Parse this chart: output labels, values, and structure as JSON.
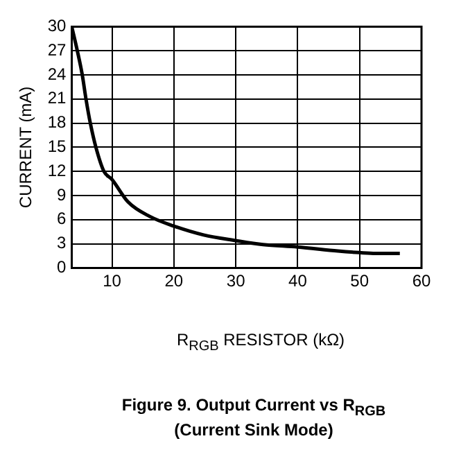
{
  "chart_data": {
    "type": "line",
    "title": "Figure 9. Output Current vs R$_{RGB}$\n(Current Sink Mode)",
    "xlabel": "R$_{RGB}$ RESISTOR (kΩ)",
    "ylabel": "CURRENT (mA)",
    "series": [
      {
        "color": "#000000",
        "x": [
          3.5,
          4.4,
          5.2,
          5.8,
          6.5,
          7.4,
          8.7,
          10,
          12.6,
          16.1,
          20,
          24.8,
          30,
          34.4,
          40,
          46.5,
          50,
          52.6,
          56.5
        ],
        "values": [
          30,
          27,
          24,
          21,
          18,
          15,
          12,
          11,
          8.2,
          6.4,
          5.2,
          4.1,
          3.4,
          2.9,
          2.6,
          2.1,
          1.9,
          1.8,
          1.8
        ]
      }
    ],
    "xlim": [
      3.5,
      60
    ],
    "xticks": [
      10,
      20,
      30,
      40,
      50,
      60
    ],
    "ylim": [
      0,
      30
    ],
    "yticks": [
      0,
      3,
      6,
      9,
      12,
      15,
      18,
      21,
      24,
      27,
      30
    ],
    "grid": true,
    "legend": false,
    "marker": "none",
    "line_style": "solid"
  }
}
